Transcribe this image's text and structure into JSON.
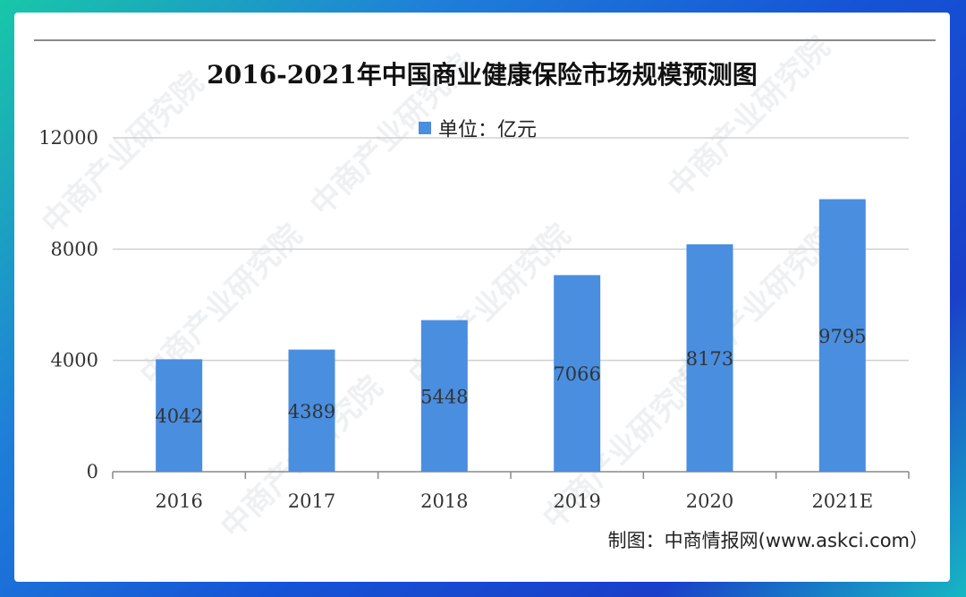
{
  "source_text": "制图：中商情报网(www.askci.com）",
  "watermark_text": "中商产业研究院",
  "colors": {
    "bar": "#4a8ee0",
    "grid": "#d0d0d0",
    "axis": "#888888"
  },
  "chart_data": {
    "type": "bar",
    "title": "2016-2021年中国商业健康保险市场规模预测图",
    "legend": "单位：亿元",
    "legend_position": "top-center",
    "categories": [
      "2016",
      "2017",
      "2018",
      "2019",
      "2020",
      "2021E"
    ],
    "series": [
      {
        "name": "单位：亿元",
        "values": [
          4042,
          4389,
          5448,
          7066,
          8173,
          9795
        ]
      }
    ],
    "data_labels": [
      "4042",
      "4389",
      "5448",
      "7066",
      "8173",
      "9795"
    ],
    "ylim": [
      0,
      12000
    ],
    "y_ticks": [
      0,
      4000,
      8000,
      12000
    ],
    "y_tick_labels": [
      "0",
      "4000",
      "8000",
      "12000"
    ],
    "grid": true
  }
}
